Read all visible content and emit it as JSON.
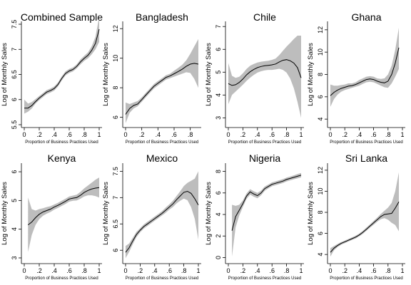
{
  "chart_data": [
    {
      "type": "line",
      "title": "Combined Sample",
      "xlabel": "Proportion of Business Practices Used",
      "ylabel": "Log of Monthly Sales",
      "xlim": [
        0,
        1
      ],
      "ylim": [
        5.5,
        7.5
      ],
      "xticks": [
        "0",
        ".2",
        ".4",
        ".6",
        ".8",
        "1"
      ],
      "yticks": [
        "5.5",
        "6",
        "6.5",
        "7",
        "7.5"
      ],
      "x": [
        0.0,
        0.05,
        0.1,
        0.15,
        0.2,
        0.25,
        0.3,
        0.35,
        0.4,
        0.45,
        0.5,
        0.55,
        0.6,
        0.65,
        0.7,
        0.75,
        0.8,
        0.85,
        0.9,
        0.95,
        1.0
      ],
      "series": [
        {
          "values": [
            5.83,
            5.83,
            5.88,
            5.96,
            6.03,
            6.09,
            6.15,
            6.18,
            6.22,
            6.3,
            6.42,
            6.52,
            6.57,
            6.6,
            6.66,
            6.75,
            6.82,
            6.88,
            6.98,
            7.12,
            7.4
          ]
        }
      ],
      "band_lower": [
        5.72,
        5.76,
        5.82,
        5.92,
        5.99,
        6.05,
        6.11,
        6.14,
        6.18,
        6.26,
        6.38,
        6.48,
        6.53,
        6.56,
        6.62,
        6.7,
        6.77,
        6.82,
        6.9,
        7.0,
        7.15
      ],
      "band_upper": [
        6.0,
        5.92,
        5.95,
        6.01,
        6.07,
        6.13,
        6.19,
        6.22,
        6.26,
        6.34,
        6.46,
        6.56,
        6.61,
        6.64,
        6.7,
        6.8,
        6.87,
        6.94,
        7.06,
        7.25,
        7.65
      ]
    },
    {
      "type": "line",
      "title": "Bangladesh",
      "xlabel": "Proportion of Business Practices Used",
      "ylabel": "Log of Monthly Sales",
      "xlim": [
        0,
        0.9
      ],
      "ylim": [
        5.5,
        12.3
      ],
      "xticks": [
        "0",
        ".2",
        ".4",
        ".6",
        ".8"
      ],
      "yticks": [
        "6",
        "8",
        "10",
        "12"
      ],
      "x": [
        0.0,
        0.05,
        0.1,
        0.15,
        0.2,
        0.25,
        0.3,
        0.35,
        0.4,
        0.45,
        0.5,
        0.55,
        0.6,
        0.65,
        0.7,
        0.75,
        0.8,
        0.85,
        0.9
      ],
      "series": [
        {
          "values": [
            6.2,
            6.6,
            6.8,
            6.9,
            7.2,
            7.5,
            7.8,
            8.1,
            8.3,
            8.5,
            8.7,
            8.8,
            8.95,
            9.1,
            9.25,
            9.45,
            9.6,
            9.65,
            9.6
          ]
        }
      ],
      "band_lower": [
        5.6,
        6.3,
        6.6,
        6.75,
        7.05,
        7.35,
        7.65,
        7.95,
        8.15,
        8.35,
        8.55,
        8.65,
        8.75,
        8.85,
        8.95,
        9.05,
        9.0,
        8.6,
        8.0
      ],
      "band_upper": [
        7.0,
        6.9,
        7.0,
        7.1,
        7.35,
        7.65,
        7.95,
        8.25,
        8.45,
        8.65,
        8.85,
        8.95,
        9.15,
        9.35,
        9.55,
        9.85,
        10.3,
        10.8,
        11.3
      ]
    },
    {
      "type": "line",
      "title": "Chile",
      "xlabel": "Proportion of Business Practices Used",
      "ylabel": "Log of Monthly Sales",
      "xlim": [
        0,
        1
      ],
      "ylim": [
        2.7,
        7.1
      ],
      "xticks": [
        "0",
        ".2",
        ".4",
        ".6",
        ".8",
        "1"
      ],
      "yticks": [
        "3",
        "4",
        "5",
        "6",
        "7"
      ],
      "x": [
        0.0,
        0.05,
        0.1,
        0.15,
        0.2,
        0.25,
        0.3,
        0.35,
        0.4,
        0.45,
        0.5,
        0.55,
        0.6,
        0.65,
        0.7,
        0.75,
        0.8,
        0.85,
        0.9,
        0.95,
        1.0
      ],
      "series": [
        {
          "values": [
            4.5,
            4.42,
            4.45,
            4.55,
            4.7,
            4.88,
            5.02,
            5.12,
            5.2,
            5.25,
            5.28,
            5.3,
            5.32,
            5.36,
            5.45,
            5.52,
            5.55,
            5.5,
            5.4,
            5.2,
            4.75
          ]
        }
      ],
      "band_lower": [
        3.6,
        4.0,
        4.15,
        4.3,
        4.45,
        4.62,
        4.76,
        4.88,
        4.98,
        5.04,
        5.08,
        5.1,
        5.1,
        5.12,
        5.15,
        5.1,
        4.98,
        4.72,
        4.3,
        3.7,
        3.0
      ],
      "band_upper": [
        5.4,
        4.84,
        4.75,
        4.8,
        4.95,
        5.14,
        5.28,
        5.36,
        5.42,
        5.46,
        5.48,
        5.5,
        5.54,
        5.6,
        5.75,
        5.94,
        6.12,
        6.28,
        6.45,
        6.6,
        6.6
      ]
    },
    {
      "type": "line",
      "title": "Ghana",
      "xlabel": "Proportion of Business Practices Used",
      "ylabel": "Log of Monthly Sales",
      "xlim": [
        0,
        1
      ],
      "ylim": [
        3.5,
        12.5
      ],
      "xticks": [
        "0",
        ".2",
        ".4",
        ".6",
        ".8",
        "1"
      ],
      "yticks": [
        "4",
        "6",
        "8",
        "10",
        "12"
      ],
      "x": [
        0.0,
        0.05,
        0.1,
        0.15,
        0.2,
        0.25,
        0.3,
        0.35,
        0.4,
        0.45,
        0.5,
        0.55,
        0.6,
        0.65,
        0.7,
        0.75,
        0.8,
        0.85,
        0.9,
        0.95
      ],
      "series": [
        {
          "values": [
            6.1,
            6.4,
            6.6,
            6.75,
            6.85,
            6.95,
            7.0,
            7.1,
            7.25,
            7.4,
            7.55,
            7.6,
            7.55,
            7.4,
            7.3,
            7.25,
            7.4,
            8.0,
            9.0,
            10.4
          ]
        }
      ],
      "band_lower": [
        5.1,
        5.8,
        6.2,
        6.45,
        6.6,
        6.7,
        6.8,
        6.9,
        7.0,
        7.15,
        7.3,
        7.35,
        7.3,
        7.15,
        7.0,
        6.85,
        6.8,
        7.2,
        7.8,
        8.5
      ],
      "band_upper": [
        7.1,
        7.0,
        7.0,
        7.05,
        7.1,
        7.2,
        7.2,
        7.3,
        7.5,
        7.65,
        7.8,
        7.85,
        7.8,
        7.65,
        7.6,
        7.65,
        8.0,
        8.8,
        10.2,
        12.2
      ]
    },
    {
      "type": "line",
      "title": "Kenya",
      "xlabel": "Proportion of Business Practices Used",
      "ylabel": "Log of Monthly Sales",
      "xlim": [
        0,
        1
      ],
      "ylim": [
        2.9,
        6.2
      ],
      "xticks": [
        "0",
        ".2",
        ".4",
        ".6",
        ".8",
        "1"
      ],
      "yticks": [
        "3",
        "4",
        "5",
        "6"
      ],
      "x": [
        0.05,
        0.1,
        0.15,
        0.2,
        0.25,
        0.3,
        0.35,
        0.4,
        0.45,
        0.5,
        0.55,
        0.6,
        0.65,
        0.7,
        0.75,
        0.8,
        0.85,
        0.9,
        0.95,
        1.0
      ],
      "series": [
        {
          "values": [
            4.15,
            4.25,
            4.4,
            4.52,
            4.6,
            4.65,
            4.7,
            4.77,
            4.83,
            4.9,
            4.97,
            5.05,
            5.08,
            5.1,
            5.18,
            5.28,
            5.35,
            5.4,
            5.43,
            5.45
          ]
        }
      ],
      "band_lower": [
        3.2,
        3.8,
        4.15,
        4.35,
        4.47,
        4.54,
        4.6,
        4.68,
        4.74,
        4.81,
        4.88,
        4.96,
        4.99,
        5.0,
        5.06,
        5.14,
        5.18,
        5.18,
        5.15,
        5.1
      ],
      "band_upper": [
        5.1,
        4.7,
        4.65,
        4.7,
        4.73,
        4.77,
        4.8,
        4.86,
        4.92,
        4.99,
        5.06,
        5.14,
        5.17,
        5.2,
        5.3,
        5.42,
        5.52,
        5.62,
        5.72,
        5.8
      ]
    },
    {
      "type": "line",
      "title": "Mexico",
      "xlabel": "Proportion of Business Practices Used",
      "ylabel": "Log of Monthly Sales",
      "xlim": [
        0,
        1
      ],
      "ylim": [
        5.8,
        7.6
      ],
      "xticks": [
        "0",
        ".2",
        ".4",
        ".6",
        ".8",
        "1"
      ],
      "yticks": [
        "6",
        "6.5",
        "7",
        "7.5"
      ],
      "x": [
        0.0,
        0.05,
        0.1,
        0.15,
        0.2,
        0.25,
        0.3,
        0.35,
        0.4,
        0.45,
        0.5,
        0.55,
        0.6,
        0.65,
        0.7,
        0.75,
        0.8,
        0.85,
        0.9,
        0.95,
        1.0
      ],
      "series": [
        {
          "values": [
            5.96,
            6.05,
            6.18,
            6.3,
            6.38,
            6.45,
            6.5,
            6.55,
            6.6,
            6.65,
            6.7,
            6.76,
            6.82,
            6.88,
            6.96,
            7.03,
            7.1,
            7.12,
            7.08,
            6.98,
            6.86
          ]
        }
      ],
      "band_lower": [
        5.85,
        5.97,
        6.12,
        6.25,
        6.34,
        6.41,
        6.46,
        6.51,
        6.56,
        6.61,
        6.66,
        6.71,
        6.77,
        6.82,
        6.89,
        6.94,
        6.98,
        6.95,
        6.82,
        6.6,
        6.2
      ],
      "band_upper": [
        6.08,
        6.13,
        6.24,
        6.35,
        6.42,
        6.49,
        6.54,
        6.59,
        6.64,
        6.69,
        6.74,
        6.81,
        6.87,
        6.94,
        7.03,
        7.12,
        7.22,
        7.28,
        7.32,
        7.36,
        7.5
      ]
    },
    {
      "type": "line",
      "title": "Nigeria",
      "xlabel": "Proportion of Business Practices Used",
      "ylabel": "Log of Monthly Sales",
      "xlim": [
        0,
        1
      ],
      "ylim": [
        -0.3,
        8.5
      ],
      "xticks": [
        "0",
        ".2",
        ".4",
        ".6",
        ".8",
        "1"
      ],
      "yticks": [
        "0",
        "2",
        "4",
        "6",
        "8"
      ],
      "x": [
        0.05,
        0.1,
        0.15,
        0.2,
        0.25,
        0.3,
        0.35,
        0.4,
        0.45,
        0.5,
        0.55,
        0.6,
        0.65,
        0.7,
        0.75,
        0.8,
        0.85,
        0.9,
        0.95,
        1.0
      ],
      "series": [
        {
          "values": [
            2.5,
            3.8,
            4.4,
            5.0,
            5.7,
            6.1,
            5.9,
            5.75,
            6.0,
            6.4,
            6.6,
            6.8,
            6.9,
            7.0,
            7.1,
            7.25,
            7.35,
            7.45,
            7.55,
            7.65
          ]
        }
      ],
      "band_lower": [
        0.1,
        2.8,
        3.9,
        4.7,
        5.45,
        5.85,
        5.65,
        5.5,
        5.78,
        6.2,
        6.42,
        6.62,
        6.72,
        6.82,
        6.92,
        7.07,
        7.17,
        7.27,
        7.35,
        7.45
      ],
      "band_upper": [
        4.9,
        4.8,
        4.9,
        5.3,
        5.95,
        6.35,
        6.15,
        6.0,
        6.22,
        6.6,
        6.78,
        6.98,
        7.08,
        7.18,
        7.28,
        7.43,
        7.53,
        7.63,
        7.75,
        7.85
      ]
    },
    {
      "type": "line",
      "title": "Sri Lanka",
      "xlabel": "Proportion of Business Practices Used",
      "ylabel": "Log of Monthly Sales",
      "xlim": [
        0,
        1
      ],
      "ylim": [
        3.4,
        12.4
      ],
      "xticks": [
        "0",
        ".2",
        ".4",
        ".6",
        ".8",
        "1"
      ],
      "yticks": [
        "4",
        "6",
        "8",
        "10",
        "12"
      ],
      "x": [
        0.0,
        0.05,
        0.1,
        0.15,
        0.2,
        0.25,
        0.3,
        0.35,
        0.4,
        0.45,
        0.5,
        0.55,
        0.6,
        0.65,
        0.7,
        0.75,
        0.8,
        0.85,
        0.9,
        0.95
      ],
      "series": [
        {
          "values": [
            4.2,
            4.6,
            4.85,
            5.05,
            5.2,
            5.35,
            5.5,
            5.65,
            5.85,
            6.1,
            6.4,
            6.7,
            7.0,
            7.3,
            7.6,
            7.8,
            7.85,
            7.9,
            8.4,
            9.0
          ]
        }
      ],
      "band_lower": [
        3.8,
        4.4,
        4.7,
        4.92,
        5.08,
        5.23,
        5.38,
        5.52,
        5.72,
        5.96,
        6.25,
        6.54,
        6.82,
        7.1,
        7.35,
        7.45,
        7.3,
        7.0,
        6.8,
        6.2
      ],
      "band_upper": [
        4.6,
        4.8,
        5.0,
        5.18,
        5.32,
        5.47,
        5.62,
        5.78,
        5.98,
        6.24,
        6.55,
        6.86,
        7.18,
        7.5,
        7.85,
        8.15,
        8.45,
        8.9,
        10.0,
        11.8
      ]
    }
  ]
}
